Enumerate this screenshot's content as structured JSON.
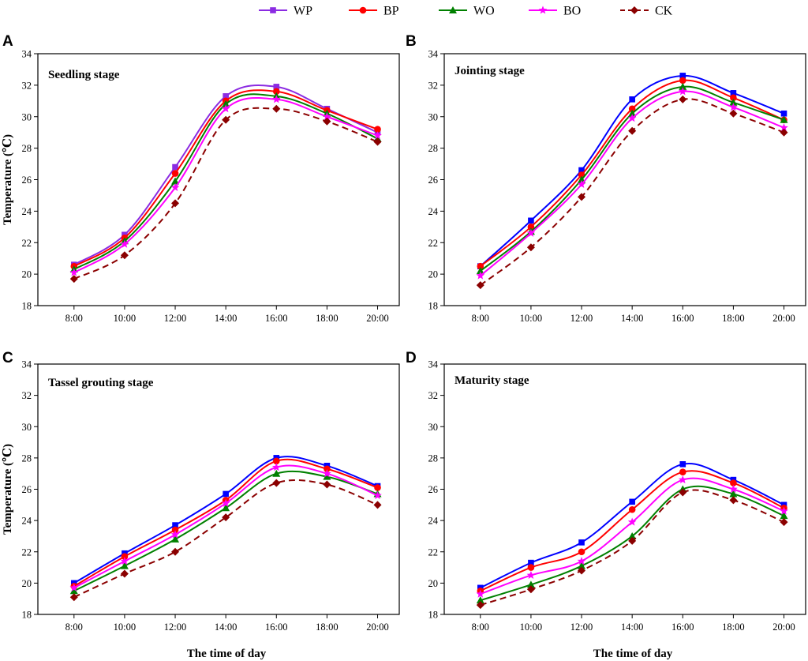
{
  "legend": [
    {
      "key": "WP",
      "label": "WP",
      "color": "#8B2BE2",
      "marker": "square",
      "dashed": false
    },
    {
      "key": "BP",
      "label": "BP",
      "color": "#FF0000",
      "marker": "circle",
      "dashed": false
    },
    {
      "key": "WO",
      "label": "WO",
      "color": "#008000",
      "marker": "triangle",
      "dashed": false
    },
    {
      "key": "BO",
      "label": "BO",
      "color": "#FF00FF",
      "marker": "star",
      "dashed": false
    },
    {
      "key": "CK",
      "label": "CK",
      "color": "#8B0000",
      "marker": "diamond",
      "dashed": true
    }
  ],
  "chart_data": [
    {
      "type": "line",
      "panel": "A",
      "title": "Seedling stage",
      "xlabel": "",
      "ylabel": "Temperature (℃)",
      "categories": [
        "8:00",
        "10:00",
        "12:00",
        "14:00",
        "16:00",
        "18:00",
        "20:00"
      ],
      "ylim": [
        18,
        34
      ],
      "yticks": [
        18,
        20,
        22,
        24,
        26,
        28,
        30,
        32,
        34
      ],
      "series": [
        {
          "name": "WP",
          "color": "#8B2BE2",
          "values": [
            20.6,
            22.5,
            26.8,
            31.3,
            31.9,
            30.5,
            29.0
          ]
        },
        {
          "name": "BP",
          "color": "#FF0000",
          "values": [
            20.5,
            22.3,
            26.4,
            31.0,
            31.6,
            30.4,
            29.2
          ]
        },
        {
          "name": "WO",
          "color": "#008000",
          "values": [
            20.3,
            22.1,
            25.9,
            30.8,
            31.3,
            30.2,
            28.6
          ]
        },
        {
          "name": "BO",
          "color": "#FF00FF",
          "values": [
            20.1,
            21.9,
            25.5,
            30.5,
            31.1,
            30.0,
            28.8
          ]
        },
        {
          "name": "CK",
          "color": "#8B0000",
          "values": [
            19.7,
            21.2,
            24.5,
            29.8,
            30.5,
            29.7,
            28.4
          ]
        }
      ]
    },
    {
      "type": "line",
      "panel": "B",
      "title": "Jointing stage",
      "xlabel": "",
      "ylabel": "",
      "categories": [
        "8:00",
        "10:00",
        "12:00",
        "14:00",
        "16:00",
        "18:00",
        "20:00"
      ],
      "ylim": [
        18,
        34
      ],
      "yticks": [
        18,
        20,
        22,
        24,
        26,
        28,
        30,
        32,
        34
      ],
      "series": [
        {
          "name": "WP",
          "color": "#0000FF",
          "values": [
            20.5,
            23.4,
            26.6,
            31.1,
            32.6,
            31.5,
            30.2
          ]
        },
        {
          "name": "BP",
          "color": "#FF0000",
          "values": [
            20.5,
            23.0,
            26.3,
            30.5,
            32.3,
            31.2,
            29.8
          ]
        },
        {
          "name": "WO",
          "color": "#008000",
          "values": [
            20.2,
            22.7,
            26.0,
            30.2,
            31.9,
            30.9,
            29.8
          ]
        },
        {
          "name": "BO",
          "color": "#FF00FF",
          "values": [
            19.9,
            22.6,
            25.7,
            29.9,
            31.6,
            30.6,
            29.3
          ]
        },
        {
          "name": "CK",
          "color": "#8B0000",
          "values": [
            19.3,
            21.7,
            24.9,
            29.1,
            31.1,
            30.2,
            29.0
          ]
        }
      ]
    },
    {
      "type": "line",
      "panel": "C",
      "title": "Tassel grouting stage",
      "xlabel": "The time of day",
      "ylabel": "Temperature (℃)",
      "categories": [
        "8:00",
        "10:00",
        "12:00",
        "14:00",
        "16:00",
        "18:00",
        "20:00"
      ],
      "ylim": [
        18,
        34
      ],
      "yticks": [
        18,
        20,
        22,
        24,
        26,
        28,
        30,
        32,
        34
      ],
      "series": [
        {
          "name": "WP",
          "color": "#0000FF",
          "values": [
            20.0,
            21.9,
            23.7,
            25.7,
            28.0,
            27.5,
            26.2
          ]
        },
        {
          "name": "BP",
          "color": "#FF0000",
          "values": [
            19.8,
            21.7,
            23.4,
            25.3,
            27.8,
            27.3,
            26.1
          ]
        },
        {
          "name": "WO",
          "color": "#008000",
          "values": [
            19.5,
            21.1,
            22.8,
            24.8,
            27.0,
            26.8,
            25.7
          ]
        },
        {
          "name": "BO",
          "color": "#FF00FF",
          "values": [
            19.7,
            21.4,
            23.1,
            25.1,
            27.4,
            27.0,
            25.6
          ]
        },
        {
          "name": "CK",
          "color": "#8B0000",
          "values": [
            19.1,
            20.6,
            22.0,
            24.2,
            26.4,
            26.3,
            25.0
          ]
        }
      ]
    },
    {
      "type": "line",
      "panel": "D",
      "title": "Maturity stage",
      "xlabel": "The time of day",
      "ylabel": "",
      "categories": [
        "8:00",
        "10:00",
        "12:00",
        "14:00",
        "16:00",
        "18:00",
        "20:00"
      ],
      "ylim": [
        18,
        34
      ],
      "yticks": [
        18,
        20,
        22,
        24,
        26,
        28,
        30,
        32,
        34
      ],
      "series": [
        {
          "name": "WP",
          "color": "#0000FF",
          "values": [
            19.7,
            21.3,
            22.6,
            25.2,
            27.6,
            26.6,
            25.0
          ]
        },
        {
          "name": "BP",
          "color": "#FF0000",
          "values": [
            19.5,
            21.0,
            22.0,
            24.7,
            27.1,
            26.4,
            24.8
          ]
        },
        {
          "name": "WO",
          "color": "#008000",
          "values": [
            18.9,
            19.9,
            21.1,
            23.0,
            26.0,
            25.7,
            24.3
          ]
        },
        {
          "name": "BO",
          "color": "#FF00FF",
          "values": [
            19.3,
            20.5,
            21.4,
            23.9,
            26.6,
            26.0,
            24.6
          ]
        },
        {
          "name": "CK",
          "color": "#8B0000",
          "values": [
            18.6,
            19.6,
            20.8,
            22.7,
            25.8,
            25.3,
            23.9
          ]
        }
      ]
    }
  ]
}
